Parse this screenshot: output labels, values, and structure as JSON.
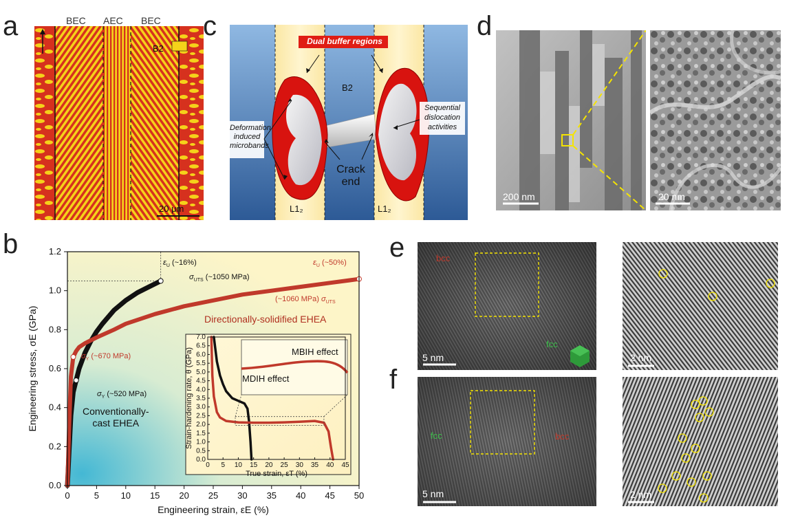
{
  "panels": {
    "a": {
      "letter": "a",
      "bec_left": "BEC",
      "aec": "AEC",
      "bec_right": "BEC",
      "phase": "B2",
      "scale": "20 μm",
      "colors": {
        "red": "#d6311e",
        "yellow": "#f5d21a"
      }
    },
    "b": {
      "letter": "b",
      "eu_16": "(~16%)",
      "eu_50": "(~50%)",
      "uts_1050": "(~1050 MPa)",
      "uts_1060": "(~1060 MPa)",
      "sy_670": "(~670 MPa)",
      "sy_520": "(~520 MPa)",
      "ds_label": "Directionally-solidified EHEA",
      "cc_label_1": "Conventionally-",
      "cc_label_2": "cast EHEA",
      "inset_mbih": "MBIH effect",
      "inset_mdih": "MDIH effect"
    },
    "c": {
      "letter": "c",
      "dual_buffer": "Dual buffer regions",
      "b2": "B2",
      "deformation_1": "Deformation",
      "deformation_2": "induced",
      "deformation_3": "microbands",
      "sequential_1": "Sequential",
      "sequential_2": "dislocation",
      "sequential_3": "activities",
      "crack_1": "Crack",
      "crack_2": "end",
      "l12_left": "L1₂",
      "l12_right": "L1₂"
    },
    "d": {
      "letter": "d",
      "scale_left": "200 nm",
      "scale_right": "20 nm"
    },
    "e": {
      "letter": "e",
      "bcc": "bcc",
      "fcc": "fcc",
      "scale_left": "5 nm",
      "scale_right": "2 nm"
    },
    "f": {
      "letter": "f",
      "bcc": "bcc",
      "fcc": "fcc",
      "scale_left": "5 nm",
      "scale_right": "2 nm"
    }
  },
  "chart_data": [
    {
      "type": "line",
      "xlabel": "Engineering strain, εE (%)",
      "ylabel": "Engineering stress, σE (GPa)",
      "xlim": [
        0,
        50
      ],
      "ylim": [
        0.0,
        1.2
      ],
      "xticks": [
        "0",
        "5",
        "10",
        "15",
        "20",
        "25",
        "30",
        "35",
        "40",
        "45",
        "50"
      ],
      "yticks": [
        "0.0",
        "0.2",
        "0.4",
        "0.6",
        "0.8",
        "1.0",
        "1.2"
      ],
      "series": [
        {
          "color": "#111111",
          "x": [
            0,
            0.3,
            0.6,
            1.0,
            1.5,
            2,
            3,
            4,
            5,
            6,
            8,
            10,
            12,
            14,
            16
          ],
          "y": [
            0,
            0.18,
            0.36,
            0.48,
            0.54,
            0.6,
            0.68,
            0.74,
            0.79,
            0.83,
            0.9,
            0.95,
            0.99,
            1.02,
            1.05
          ]
        },
        {
          "color": "#c0392b",
          "x": [
            0,
            0.3,
            0.6,
            1.0,
            1.5,
            2,
            3,
            5,
            8,
            10,
            15,
            20,
            25,
            30,
            35,
            40,
            45,
            50
          ],
          "y": [
            0,
            0.3,
            0.56,
            0.66,
            0.69,
            0.71,
            0.73,
            0.76,
            0.8,
            0.83,
            0.88,
            0.92,
            0.95,
            0.98,
            1.0,
            1.02,
            1.04,
            1.06
          ]
        }
      ]
    },
    {
      "type": "line",
      "xlabel": "True strain, εT (%)",
      "ylabel": "Strain-hardening rate, θ (GPa)",
      "xlim": [
        0,
        45
      ],
      "ylim": [
        0.0,
        7.0
      ],
      "xticks": [
        "0",
        "5",
        "10",
        "15",
        "20",
        "25",
        "30",
        "35",
        "40",
        "45"
      ],
      "yticks": [
        "0.0",
        "0.5",
        "1.0",
        "1.5",
        "2.0",
        "2.5",
        "3.0",
        "3.5",
        "4.0",
        "4.5",
        "5.0",
        "5.5",
        "6.0",
        "6.5",
        "7.0"
      ],
      "series": [
        {
          "color": "#111111",
          "x": [
            2,
            3,
            4,
            5,
            6,
            8,
            10,
            12,
            13,
            13.5,
            14,
            14.3
          ],
          "y": [
            7.0,
            5.6,
            4.8,
            4.3,
            3.9,
            3.5,
            3.35,
            3.2,
            2.9,
            2.2,
            1.0,
            0.0
          ]
        },
        {
          "color": "#c0392b",
          "x": [
            1.2,
            1.5,
            2,
            3,
            4,
            6,
            10,
            15,
            20,
            25,
            30,
            35,
            38,
            39.5,
            40.3,
            41
          ],
          "y": [
            7.0,
            4.8,
            3.6,
            2.7,
            2.4,
            2.2,
            2.12,
            2.1,
            2.1,
            2.12,
            2.15,
            2.2,
            2.1,
            1.6,
            0.7,
            0.0
          ]
        }
      ]
    }
  ]
}
